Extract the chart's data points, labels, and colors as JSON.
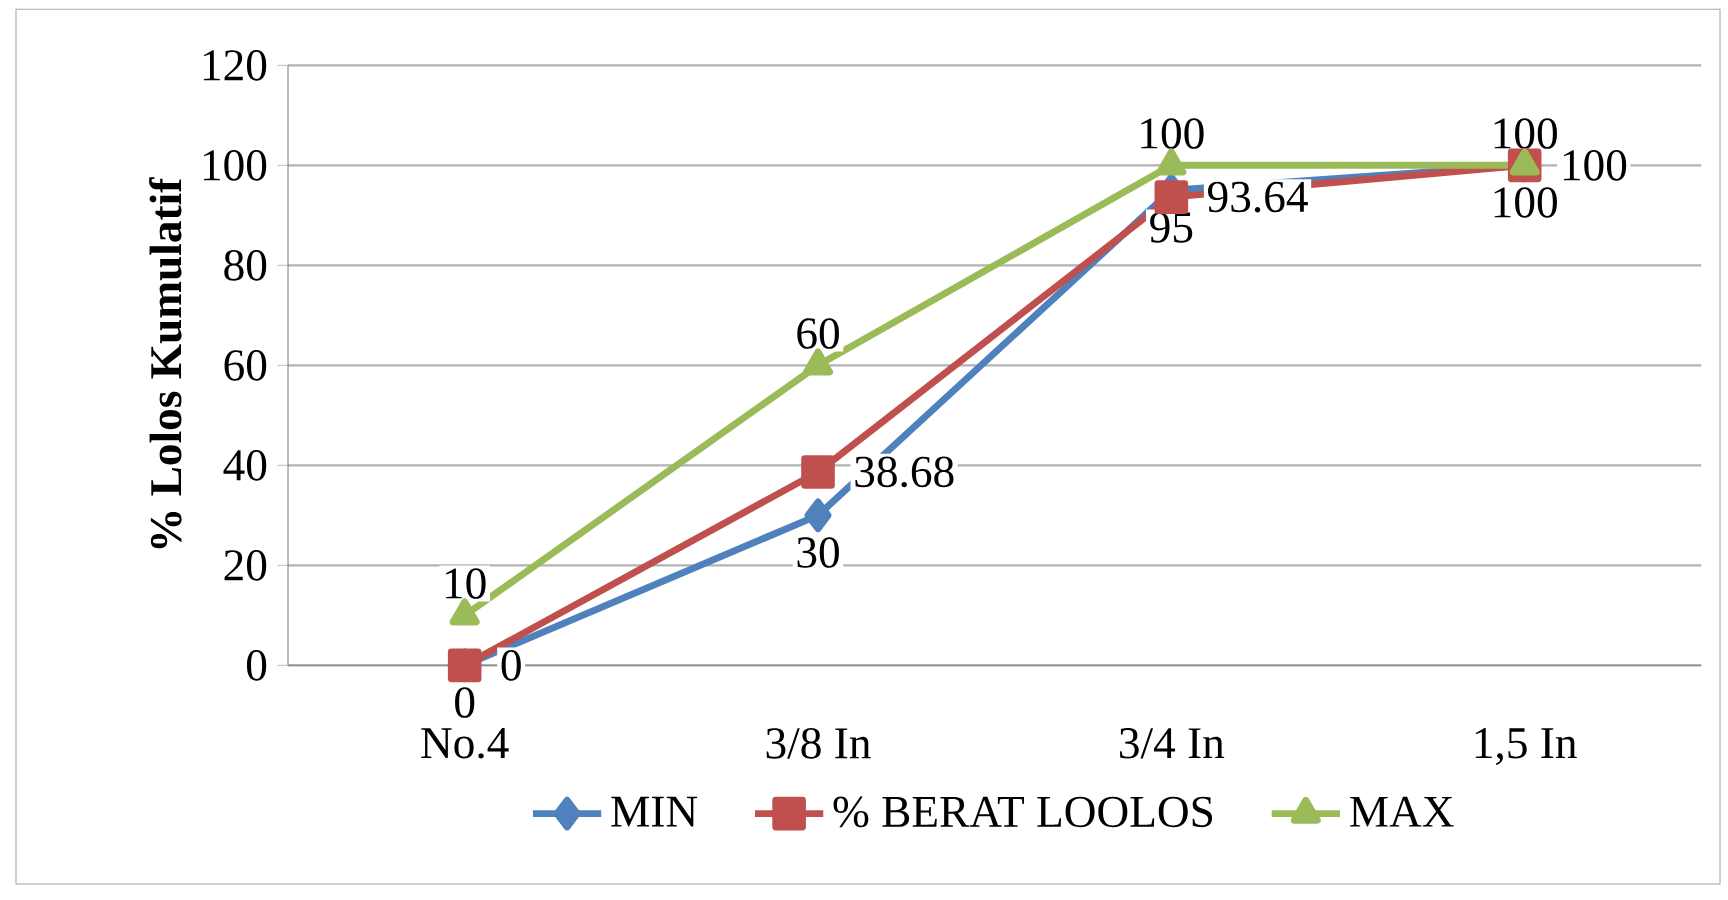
{
  "chart_data": {
    "type": "line",
    "ylabel": "% Lolos Kumulatif",
    "categories": [
      "No.4",
      "3/8 In",
      "3/4 In",
      "1,5 In"
    ],
    "series": [
      {
        "name": "MIN",
        "color": "#4f81bd",
        "marker": "diamond",
        "values": [
          0,
          30,
          95,
          100
        ]
      },
      {
        "name": "% BERAT LOOLOS",
        "color": "#c0504d",
        "marker": "square",
        "values": [
          0,
          38.68,
          93.64,
          100
        ]
      },
      {
        "name": "MAX",
        "color": "#9bbb59",
        "marker": "triangle",
        "values": [
          10,
          60,
          100,
          100
        ]
      }
    ],
    "ylim": [
      0,
      120
    ],
    "yticks": [
      0,
      20,
      40,
      60,
      80,
      100,
      120
    ],
    "grid": "y",
    "legend": "bottom",
    "data_labels": true
  }
}
